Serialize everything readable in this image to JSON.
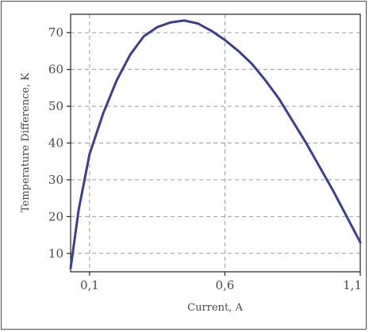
{
  "chart_data": {
    "type": "line",
    "title": "",
    "xlabel": "Current, A",
    "ylabel": "Temperature Difference, K",
    "xlim": [
      0.03,
      1.1
    ],
    "ylim": [
      5,
      75
    ],
    "x_ticks": [
      0.1,
      0.6,
      1.1
    ],
    "x_tick_labels": [
      "0,1",
      "0,6",
      "1,1"
    ],
    "y_ticks": [
      10,
      20,
      30,
      40,
      50,
      60,
      70
    ],
    "y_tick_labels": [
      "10",
      "20",
      "30",
      "40",
      "50",
      "60",
      "70"
    ],
    "grid": true,
    "legend": "none",
    "series": [
      {
        "color": "#3c3f8f",
        "x": [
          0.03,
          0.06,
          0.1,
          0.15,
          0.2,
          0.25,
          0.3,
          0.35,
          0.4,
          0.45,
          0.5,
          0.55,
          0.6,
          0.65,
          0.7,
          0.75,
          0.8,
          0.85,
          0.9,
          0.95,
          1.0,
          1.05,
          1.1
        ],
        "y": [
          6,
          22,
          37,
          48,
          57,
          64,
          69,
          71.5,
          72.8,
          73.3,
          72.5,
          70.5,
          68,
          65,
          61.5,
          57,
          52,
          46,
          40,
          33.5,
          27,
          20,
          13
        ]
      }
    ]
  }
}
